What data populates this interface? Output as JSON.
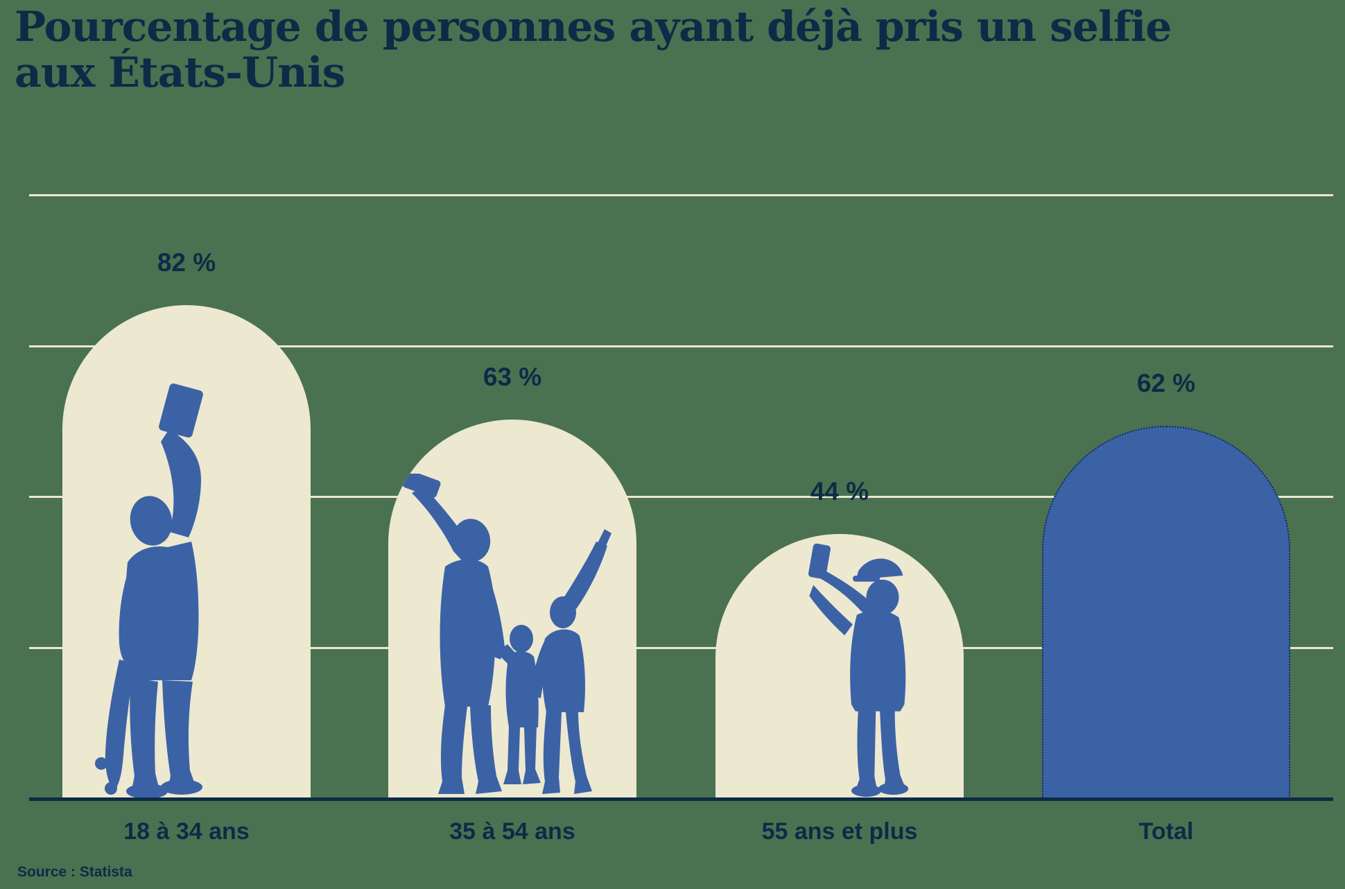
{
  "title": {
    "line1": "Pourcentage de personnes ayant déjà pris un selfie",
    "line2": "aux États-Unis",
    "full": "Pourcentage de personnes ayant déjà pris un selfie aux États-Unis"
  },
  "source": "Source : Statista",
  "colors": {
    "background": "#4A7250",
    "bar_cream": "#EDE8D0",
    "bar_blue": "#3C62A6",
    "text_navy": "#0D2B47",
    "gridline": "#EDE8D0",
    "axis": "#0D2B47"
  },
  "chart_data": {
    "type": "bar",
    "title": "Pourcentage de personnes ayant déjà pris un selfie aux États-Unis",
    "unit": "%",
    "ylim": [
      0,
      100
    ],
    "grid": "4 horizontal cream gridlines at 25, 50, 75, 100; dark baseline at 0",
    "legend": "none",
    "source": "Statista",
    "categories": [
      "18 à 34 ans",
      "35 à 54 ans",
      "55 ans et plus",
      "Total"
    ],
    "values": [
      82,
      63,
      44,
      62
    ],
    "value_labels": [
      "82 %",
      "63 %",
      "44 %",
      "62 %"
    ],
    "bars": [
      {
        "category": "18 à 34 ans",
        "value": 82,
        "value_label": "82 %",
        "fill": "cream",
        "silhouette": "young-adult-with-skateboard-taking-selfie"
      },
      {
        "category": "35 à 54 ans",
        "value": 63,
        "value_label": "63 %",
        "fill": "cream",
        "silhouette": "adult-with-two-children-taking-selfie"
      },
      {
        "category": "55 ans et plus",
        "value": 44,
        "value_label": "44 %",
        "fill": "cream",
        "silhouette": "senior-man-with-cap-taking-selfie"
      },
      {
        "category": "Total",
        "value": 62,
        "value_label": "62 %",
        "fill": "blue",
        "silhouette": null
      }
    ]
  }
}
